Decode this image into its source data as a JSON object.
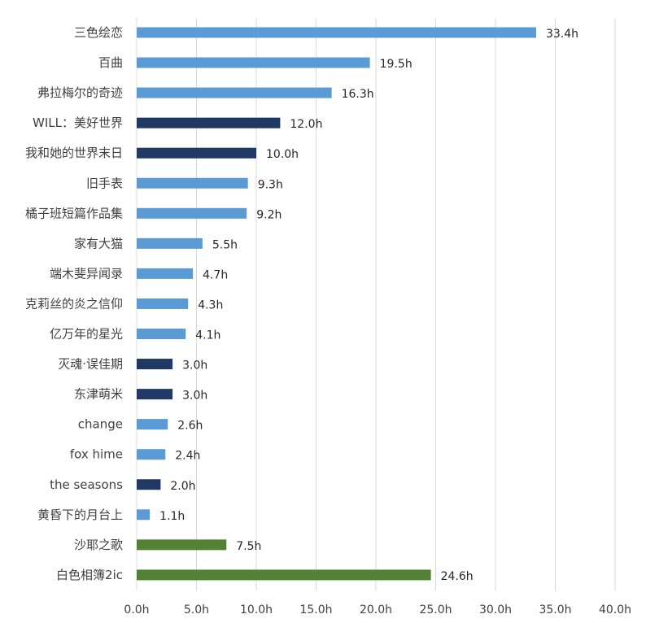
{
  "chart_data": {
    "type": "bar",
    "orientation": "horizontal",
    "title": "",
    "xlabel": "",
    "ylabel": "",
    "xlim": [
      0,
      40
    ],
    "grid": true,
    "legend": "none",
    "unit_suffix": "h",
    "ticks": [
      "0.0h",
      "5.0h",
      "10.0h",
      "15.0h",
      "20.0h",
      "25.0h",
      "30.0h",
      "35.0h",
      "40.0h"
    ],
    "tick_values": [
      0,
      5,
      10,
      15,
      20,
      25,
      30,
      35,
      40
    ],
    "colors": {
      "light_blue": "#5b9bd5",
      "dark_navy": "#1f3864",
      "green": "#548235"
    },
    "bars": [
      {
        "label": "三色绘恋",
        "value": 33.4,
        "value_label": "33.4h",
        "color": "light_blue"
      },
      {
        "label": "百曲",
        "value": 19.5,
        "value_label": "19.5h",
        "color": "light_blue"
      },
      {
        "label": "弗拉梅尔的奇迹",
        "value": 16.3,
        "value_label": "16.3h",
        "color": "light_blue"
      },
      {
        "label": "WILL：美好世界",
        "value": 12.0,
        "value_label": "12.0h",
        "color": "dark_navy"
      },
      {
        "label": "我和她的世界末日",
        "value": 10.0,
        "value_label": "10.0h",
        "color": "dark_navy"
      },
      {
        "label": "旧手表",
        "value": 9.3,
        "value_label": "9.3h",
        "color": "light_blue"
      },
      {
        "label": "橘子班短篇作品集",
        "value": 9.2,
        "value_label": "9.2h",
        "color": "light_blue"
      },
      {
        "label": "家有大猫",
        "value": 5.5,
        "value_label": "5.5h",
        "color": "light_blue"
      },
      {
        "label": "端木斐异闻录",
        "value": 4.7,
        "value_label": "4.7h",
        "color": "light_blue"
      },
      {
        "label": "克莉丝的炎之信仰",
        "value": 4.3,
        "value_label": "4.3h",
        "color": "light_blue"
      },
      {
        "label": "亿万年的星光",
        "value": 4.1,
        "value_label": "4.1h",
        "color": "light_blue"
      },
      {
        "label": "灭魂·误佳期",
        "value": 3.0,
        "value_label": "3.0h",
        "color": "dark_navy"
      },
      {
        "label": "东津萌米",
        "value": 3.0,
        "value_label": "3.0h",
        "color": "dark_navy"
      },
      {
        "label": "change",
        "value": 2.6,
        "value_label": "2.6h",
        "color": "light_blue"
      },
      {
        "label": "fox hime",
        "value": 2.4,
        "value_label": "2.4h",
        "color": "light_blue"
      },
      {
        "label": "the seasons",
        "value": 2.0,
        "value_label": "2.0h",
        "color": "dark_navy"
      },
      {
        "label": "黄昏下的月台上",
        "value": 1.1,
        "value_label": "1.1h",
        "color": "light_blue"
      },
      {
        "label": "沙耶之歌",
        "value": 7.5,
        "value_label": "7.5h",
        "color": "green"
      },
      {
        "label": "白色相簿2ic",
        "value": 24.6,
        "value_label": "24.6h",
        "color": "green"
      }
    ]
  }
}
